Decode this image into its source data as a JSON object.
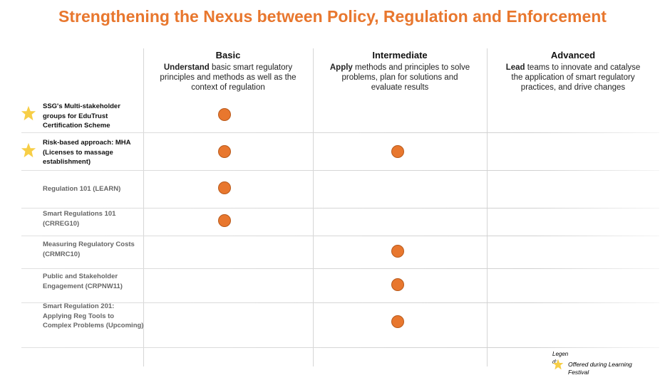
{
  "title": "Strengthening the Nexus between Policy, Regulation and Enforcement",
  "columns": [
    {
      "name": "Basic",
      "lead": "Understand",
      "text": " basic smart regulatory principles and methods as well as the context of regulation"
    },
    {
      "name": "Intermediate",
      "lead": "Apply",
      "text": " methods and principles to solve problems, plan for solutions and evaluate results"
    },
    {
      "name": "Advanced",
      "lead": "Lead",
      "text": " teams to innovate and catalyse the application of smart regulatory practices, and drive changes"
    }
  ],
  "rows": [
    {
      "label": "SSG's Multi-stakeholder groups for EduTrust Certification Scheme",
      "starred": true,
      "marks": [
        true,
        false,
        false
      ]
    },
    {
      "label": "Risk-based  approach: MHA (Licenses to massage establishment)",
      "starred": true,
      "marks": [
        true,
        true,
        false
      ]
    },
    {
      "label": "Regulation 101 (LEARN)",
      "starred": false,
      "marks": [
        true,
        false,
        false
      ]
    },
    {
      "label": "Smart Regulations 101 (CRREG10)",
      "starred": false,
      "marks": [
        true,
        false,
        false
      ]
    },
    {
      "label": "Measuring Regulatory Costs (CRMRC10)",
      "starred": false,
      "marks": [
        false,
        true,
        false
      ]
    },
    {
      "label": "Public and Stakeholder Engagement (CRPNW11)",
      "starred": false,
      "marks": [
        false,
        true,
        false
      ]
    },
    {
      "label": "Smart Regulation 201: Applying Reg Tools to Complex Problems (Upcoming)",
      "starred": false,
      "marks": [
        false,
        true,
        false
      ]
    }
  ],
  "legend": {
    "title": "Legend:",
    "text": "Offered during Learning Festival"
  }
}
